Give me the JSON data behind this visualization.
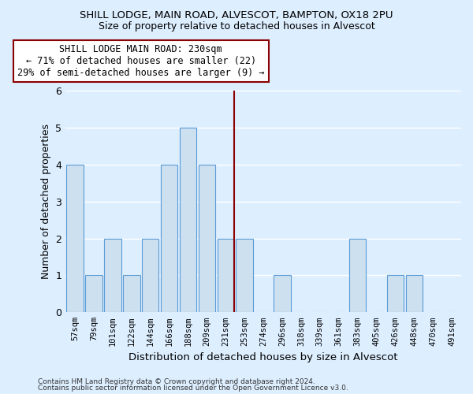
{
  "title1": "SHILL LODGE, MAIN ROAD, ALVESCOT, BAMPTON, OX18 2PU",
  "title2": "Size of property relative to detached houses in Alvescot",
  "xlabel": "Distribution of detached houses by size in Alvescot",
  "ylabel": "Number of detached properties",
  "footnote1": "Contains HM Land Registry data © Crown copyright and database right 2024.",
  "footnote2": "Contains public sector information licensed under the Open Government Licence v3.0.",
  "categories": [
    "57sqm",
    "79sqm",
    "101sqm",
    "122sqm",
    "144sqm",
    "166sqm",
    "188sqm",
    "209sqm",
    "231sqm",
    "253sqm",
    "274sqm",
    "296sqm",
    "318sqm",
    "339sqm",
    "361sqm",
    "383sqm",
    "405sqm",
    "426sqm",
    "448sqm",
    "470sqm",
    "491sqm"
  ],
  "values": [
    4,
    1,
    2,
    1,
    2,
    4,
    5,
    4,
    2,
    2,
    0,
    1,
    0,
    0,
    0,
    2,
    0,
    1,
    1,
    0,
    0
  ],
  "bar_color": "#cce0f0",
  "bar_edge_color": "#5b9bd5",
  "reference_line_index": 8,
  "reference_line_color": "#8b0000",
  "annotation_text": "SHILL LODGE MAIN ROAD: 230sqm\n← 71% of detached houses are smaller (22)\n29% of semi-detached houses are larger (9) →",
  "annotation_box_color": "#ffffff",
  "annotation_box_edge": "#8b0000",
  "ylim": [
    0,
    6
  ],
  "background_color": "#ddeeff",
  "grid_color": "#ffffff"
}
